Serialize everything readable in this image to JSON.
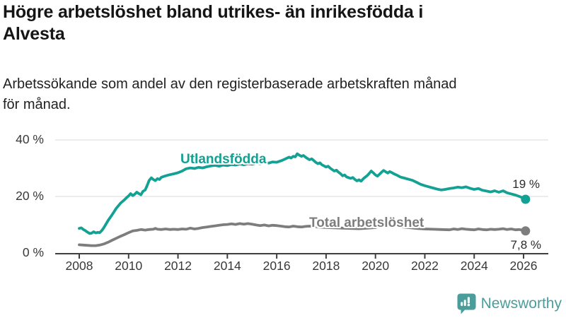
{
  "title": {
    "full": "Högre arbetslöshet bland utrikes- än inrikesfödda i Alvesta",
    "line1": "Högre arbetslöshet bland utrikes- än inrikesfödda i",
    "line2": "Alvesta"
  },
  "subtitle": {
    "full": "Arbetssökande som andel av den registerbaserade arbetskraften månad för månad.",
    "line1": "Arbetssökande som andel av den registerbaserade arbetskraften månad",
    "line2": "för månad."
  },
  "footer": {
    "brand": "Newsworthy",
    "brand_color": "#4a9d9b",
    "logo_icon": "speech-bubble-bar-chart-exclamation"
  },
  "chart_data": {
    "type": "line",
    "unit": "%",
    "grid": true,
    "legend_position": "inline-labels",
    "ylim": [
      0,
      42
    ],
    "xlim": [
      2007.5,
      2026.9
    ],
    "yticks": [
      {
        "value": 0,
        "label": "0 %"
      },
      {
        "value": 20,
        "label": "20 %"
      },
      {
        "value": 40,
        "label": "40 %"
      }
    ],
    "xticks": [
      {
        "value": 2008,
        "label": "2008"
      },
      {
        "value": 2010,
        "label": "2010"
      },
      {
        "value": 2012,
        "label": "2012"
      },
      {
        "value": 2014,
        "label": "2014"
      },
      {
        "value": 2016,
        "label": "2016"
      },
      {
        "value": 2018,
        "label": "2018"
      },
      {
        "value": 2020,
        "label": "2020"
      },
      {
        "value": 2022,
        "label": "2022"
      },
      {
        "value": 2024,
        "label": "2024"
      },
      {
        "value": 2026,
        "label": "2026"
      }
    ],
    "series": [
      {
        "name": "Utlandsfödda",
        "color": "#12a193",
        "end_value": 19,
        "end_label": "19 %",
        "points": [
          [
            2008.0,
            8.7
          ],
          [
            2008.08,
            8.9
          ],
          [
            2008.17,
            8.3
          ],
          [
            2008.25,
            7.9
          ],
          [
            2008.33,
            7.4
          ],
          [
            2008.42,
            6.9
          ],
          [
            2008.5,
            7.0
          ],
          [
            2008.58,
            7.5
          ],
          [
            2008.67,
            7.1
          ],
          [
            2008.75,
            7.3
          ],
          [
            2008.83,
            7.2
          ],
          [
            2008.92,
            8.0
          ],
          [
            2009.0,
            9.0
          ],
          [
            2009.17,
            11.5
          ],
          [
            2009.33,
            13.5
          ],
          [
            2009.5,
            15.8
          ],
          [
            2009.67,
            17.6
          ],
          [
            2009.83,
            18.8
          ],
          [
            2009.92,
            19.6
          ],
          [
            2010.0,
            20.2
          ],
          [
            2010.08,
            21.0
          ],
          [
            2010.17,
            20.3
          ],
          [
            2010.25,
            20.8
          ],
          [
            2010.33,
            21.5
          ],
          [
            2010.42,
            21.0
          ],
          [
            2010.5,
            20.6
          ],
          [
            2010.58,
            21.8
          ],
          [
            2010.67,
            22.3
          ],
          [
            2010.75,
            23.8
          ],
          [
            2010.83,
            25.6
          ],
          [
            2010.92,
            26.6
          ],
          [
            2011.0,
            26.0
          ],
          [
            2011.08,
            25.6
          ],
          [
            2011.17,
            26.3
          ],
          [
            2011.25,
            26.0
          ],
          [
            2011.33,
            26.8
          ],
          [
            2011.5,
            27.3
          ],
          [
            2011.67,
            27.7
          ],
          [
            2011.83,
            28.0
          ],
          [
            2012.0,
            28.4
          ],
          [
            2012.17,
            29.0
          ],
          [
            2012.33,
            29.8
          ],
          [
            2012.5,
            30.1
          ],
          [
            2012.67,
            29.9
          ],
          [
            2012.83,
            30.3
          ],
          [
            2013.0,
            30.1
          ],
          [
            2013.17,
            30.5
          ],
          [
            2013.33,
            30.8
          ],
          [
            2013.5,
            31.0
          ],
          [
            2013.67,
            30.7
          ],
          [
            2013.83,
            31.1
          ],
          [
            2014.0,
            30.9
          ],
          [
            2014.17,
            31.3
          ],
          [
            2014.33,
            31.1
          ],
          [
            2014.5,
            31.5
          ],
          [
            2014.67,
            31.2
          ],
          [
            2014.83,
            31.6
          ],
          [
            2015.0,
            31.4
          ],
          [
            2015.17,
            31.8
          ],
          [
            2015.33,
            31.6
          ],
          [
            2015.5,
            32.0
          ],
          [
            2015.67,
            31.8
          ],
          [
            2015.83,
            32.2
          ],
          [
            2016.0,
            32.1
          ],
          [
            2016.17,
            32.6
          ],
          [
            2016.33,
            33.2
          ],
          [
            2016.5,
            33.9
          ],
          [
            2016.58,
            33.6
          ],
          [
            2016.67,
            34.2
          ],
          [
            2016.75,
            34.0
          ],
          [
            2016.83,
            35.1
          ],
          [
            2016.92,
            34.6
          ],
          [
            2017.0,
            34.2
          ],
          [
            2017.08,
            34.5
          ],
          [
            2017.17,
            33.9
          ],
          [
            2017.25,
            33.4
          ],
          [
            2017.33,
            33.0
          ],
          [
            2017.42,
            33.3
          ],
          [
            2017.5,
            32.7
          ],
          [
            2017.58,
            32.1
          ],
          [
            2017.67,
            31.6
          ],
          [
            2017.75,
            31.9
          ],
          [
            2017.83,
            31.2
          ],
          [
            2017.92,
            30.8
          ],
          [
            2018.0,
            30.4
          ],
          [
            2018.08,
            30.7
          ],
          [
            2018.17,
            30.0
          ],
          [
            2018.25,
            29.5
          ],
          [
            2018.33,
            29.0
          ],
          [
            2018.42,
            29.3
          ],
          [
            2018.5,
            28.6
          ],
          [
            2018.58,
            28.1
          ],
          [
            2018.67,
            27.3
          ],
          [
            2018.75,
            27.6
          ],
          [
            2018.83,
            26.9
          ],
          [
            2019.0,
            26.4
          ],
          [
            2019.08,
            26.7
          ],
          [
            2019.17,
            26.0
          ],
          [
            2019.25,
            25.5
          ],
          [
            2019.33,
            25.9
          ],
          [
            2019.42,
            25.4
          ],
          [
            2019.5,
            26.2
          ],
          [
            2019.58,
            26.8
          ],
          [
            2019.67,
            27.4
          ],
          [
            2019.75,
            28.2
          ],
          [
            2019.83,
            29.0
          ],
          [
            2019.92,
            28.3
          ],
          [
            2020.0,
            27.6
          ],
          [
            2020.08,
            27.2
          ],
          [
            2020.17,
            27.9
          ],
          [
            2020.25,
            28.6
          ],
          [
            2020.33,
            29.2
          ],
          [
            2020.42,
            28.7
          ],
          [
            2020.5,
            28.3
          ],
          [
            2020.58,
            28.8
          ],
          [
            2020.67,
            28.4
          ],
          [
            2020.75,
            28.0
          ],
          [
            2020.83,
            27.7
          ],
          [
            2020.92,
            27.3
          ],
          [
            2021.0,
            26.9
          ],
          [
            2021.17,
            26.5
          ],
          [
            2021.33,
            26.1
          ],
          [
            2021.5,
            25.7
          ],
          [
            2021.67,
            25.0
          ],
          [
            2021.83,
            24.3
          ],
          [
            2022.0,
            23.8
          ],
          [
            2022.17,
            23.4
          ],
          [
            2022.33,
            23.0
          ],
          [
            2022.5,
            22.6
          ],
          [
            2022.67,
            22.3
          ],
          [
            2022.83,
            22.5
          ],
          [
            2023.0,
            22.8
          ],
          [
            2023.17,
            23.0
          ],
          [
            2023.33,
            23.3
          ],
          [
            2023.5,
            23.1
          ],
          [
            2023.67,
            23.4
          ],
          [
            2023.83,
            22.9
          ],
          [
            2024.0,
            22.5
          ],
          [
            2024.17,
            22.8
          ],
          [
            2024.33,
            22.2
          ],
          [
            2024.5,
            21.9
          ],
          [
            2024.67,
            21.6
          ],
          [
            2024.83,
            22.0
          ],
          [
            2025.0,
            21.5
          ],
          [
            2025.17,
            22.0
          ],
          [
            2025.33,
            21.3
          ],
          [
            2025.5,
            20.9
          ],
          [
            2025.67,
            20.5
          ],
          [
            2025.83,
            20.0
          ],
          [
            2026.0,
            19.4
          ],
          [
            2026.08,
            19.0
          ]
        ]
      },
      {
        "name": "Total arbetslöshet",
        "color": "#7d7d7d",
        "end_value": 7.8,
        "end_label": "7,8 %",
        "points": [
          [
            2008.0,
            2.9
          ],
          [
            2008.17,
            2.8
          ],
          [
            2008.33,
            2.7
          ],
          [
            2008.5,
            2.6
          ],
          [
            2008.67,
            2.6
          ],
          [
            2008.83,
            2.8
          ],
          [
            2009.0,
            3.2
          ],
          [
            2009.17,
            3.8
          ],
          [
            2009.33,
            4.5
          ],
          [
            2009.5,
            5.2
          ],
          [
            2009.67,
            5.9
          ],
          [
            2009.83,
            6.5
          ],
          [
            2010.0,
            7.2
          ],
          [
            2010.17,
            7.8
          ],
          [
            2010.33,
            8.0
          ],
          [
            2010.5,
            8.3
          ],
          [
            2010.67,
            8.1
          ],
          [
            2010.83,
            8.3
          ],
          [
            2011.0,
            8.4
          ],
          [
            2011.08,
            8.7
          ],
          [
            2011.17,
            8.4
          ],
          [
            2011.33,
            8.3
          ],
          [
            2011.5,
            8.5
          ],
          [
            2011.67,
            8.3
          ],
          [
            2011.83,
            8.4
          ],
          [
            2012.0,
            8.3
          ],
          [
            2012.17,
            8.5
          ],
          [
            2012.33,
            8.4
          ],
          [
            2012.5,
            8.8
          ],
          [
            2012.67,
            8.5
          ],
          [
            2012.83,
            8.7
          ],
          [
            2013.0,
            9.0
          ],
          [
            2013.17,
            9.2
          ],
          [
            2013.33,
            9.4
          ],
          [
            2013.5,
            9.6
          ],
          [
            2013.67,
            9.8
          ],
          [
            2013.83,
            10.0
          ],
          [
            2014.0,
            10.1
          ],
          [
            2014.17,
            10.3
          ],
          [
            2014.33,
            10.1
          ],
          [
            2014.5,
            10.4
          ],
          [
            2014.67,
            10.2
          ],
          [
            2014.83,
            10.4
          ],
          [
            2015.0,
            10.2
          ],
          [
            2015.17,
            9.9
          ],
          [
            2015.33,
            9.7
          ],
          [
            2015.5,
            9.9
          ],
          [
            2015.67,
            9.6
          ],
          [
            2015.83,
            9.8
          ],
          [
            2016.0,
            9.7
          ],
          [
            2016.17,
            9.5
          ],
          [
            2016.33,
            9.3
          ],
          [
            2016.5,
            9.2
          ],
          [
            2016.67,
            9.5
          ],
          [
            2016.83,
            9.3
          ],
          [
            2017.0,
            9.2
          ],
          [
            2017.17,
            9.4
          ],
          [
            2017.33,
            9.5
          ],
          [
            2017.5,
            9.3
          ],
          [
            2017.67,
            9.2
          ],
          [
            2017.83,
            9.1
          ],
          [
            2018.0,
            9.0
          ],
          [
            2018.33,
            8.9
          ],
          [
            2018.67,
            8.8
          ],
          [
            2019.0,
            8.7
          ],
          [
            2019.33,
            8.6
          ],
          [
            2019.67,
            8.8
          ],
          [
            2020.0,
            9.0
          ],
          [
            2020.17,
            9.5
          ],
          [
            2020.33,
            9.9
          ],
          [
            2020.5,
            9.7
          ],
          [
            2020.67,
            9.6
          ],
          [
            2021.0,
            9.3
          ],
          [
            2021.33,
            9.0
          ],
          [
            2021.67,
            8.7
          ],
          [
            2022.0,
            8.5
          ],
          [
            2022.33,
            8.4
          ],
          [
            2022.67,
            8.3
          ],
          [
            2023.0,
            8.2
          ],
          [
            2023.17,
            8.5
          ],
          [
            2023.33,
            8.3
          ],
          [
            2023.5,
            8.6
          ],
          [
            2023.67,
            8.4
          ],
          [
            2023.83,
            8.3
          ],
          [
            2024.0,
            8.2
          ],
          [
            2024.17,
            8.5
          ],
          [
            2024.33,
            8.3
          ],
          [
            2024.5,
            8.2
          ],
          [
            2024.67,
            8.4
          ],
          [
            2024.83,
            8.3
          ],
          [
            2025.0,
            8.4
          ],
          [
            2025.17,
            8.6
          ],
          [
            2025.33,
            8.3
          ],
          [
            2025.5,
            8.5
          ],
          [
            2025.67,
            8.2
          ],
          [
            2025.83,
            8.3
          ],
          [
            2026.0,
            8.0
          ],
          [
            2026.08,
            7.8
          ]
        ]
      }
    ]
  }
}
